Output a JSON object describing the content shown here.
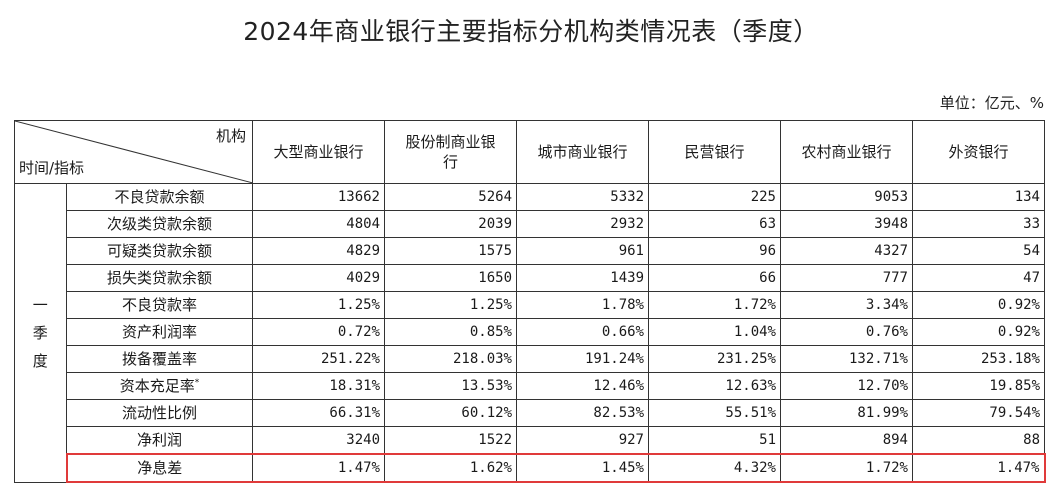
{
  "title": "2024年商业银行主要指标分机构类情况表（季度）",
  "unit": "单位：亿元、%",
  "header": {
    "corner_top": "机构",
    "corner_bottom": "时间/指标",
    "columns": [
      "大型商业银行",
      "股份制商业银行",
      "城市商业银行",
      "民营银行",
      "农村商业银行",
      "外资银行"
    ]
  },
  "period": [
    "一",
    "季",
    "度"
  ],
  "rows": [
    {
      "indicator": "不良贷款余额",
      "values": [
        "13662",
        "5264",
        "5332",
        "225",
        "9053",
        "134"
      ]
    },
    {
      "indicator": "次级类贷款余额",
      "values": [
        "4804",
        "2039",
        "2932",
        "63",
        "3948",
        "33"
      ]
    },
    {
      "indicator": "可疑类贷款余额",
      "values": [
        "4829",
        "1575",
        "961",
        "96",
        "4327",
        "54"
      ]
    },
    {
      "indicator": "损失类贷款余额",
      "values": [
        "4029",
        "1650",
        "1439",
        "66",
        "777",
        "47"
      ]
    },
    {
      "indicator": "不良贷款率",
      "values": [
        "1.25%",
        "1.25%",
        "1.78%",
        "1.72%",
        "3.34%",
        "0.92%"
      ]
    },
    {
      "indicator": "资产利润率",
      "values": [
        "0.72%",
        "0.85%",
        "0.66%",
        "1.04%",
        "0.76%",
        "0.92%"
      ]
    },
    {
      "indicator": "拨备覆盖率",
      "values": [
        "251.22%",
        "218.03%",
        "191.24%",
        "231.25%",
        "132.71%",
        "253.18%"
      ]
    },
    {
      "indicator": "资本充足率",
      "sup": "*",
      "values": [
        "18.31%",
        "13.53%",
        "12.46%",
        "12.63%",
        "12.70%",
        "19.85%"
      ]
    },
    {
      "indicator": "流动性比例",
      "values": [
        "66.31%",
        "60.12%",
        "82.53%",
        "55.51%",
        "81.99%",
        "79.54%"
      ]
    },
    {
      "indicator": "净利润",
      "values": [
        "3240",
        "1522",
        "927",
        "51",
        "894",
        "88"
      ]
    },
    {
      "indicator": "净息差",
      "values": [
        "1.47%",
        "1.62%",
        "1.45%",
        "4.32%",
        "1.72%",
        "1.47%"
      ],
      "highlight": true
    }
  ],
  "highlight_color": "#e03a3a"
}
